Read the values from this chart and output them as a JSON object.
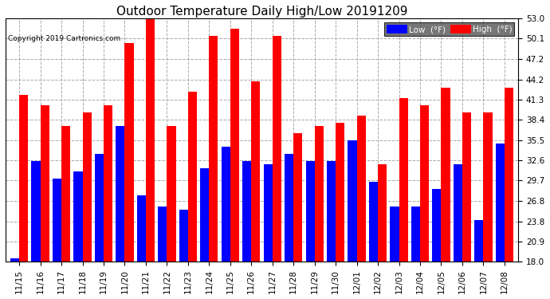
{
  "title": "Outdoor Temperature Daily High/Low 20191209",
  "copyright": "Copyright 2019 Cartronics.com",
  "legend_low": "Low  (°F)",
  "legend_high": "High  (°F)",
  "dates": [
    "11/15",
    "11/16",
    "11/17",
    "11/18",
    "11/19",
    "11/20",
    "11/21",
    "11/22",
    "11/23",
    "11/24",
    "11/25",
    "11/26",
    "11/27",
    "11/28",
    "11/29",
    "11/30",
    "12/01",
    "12/02",
    "12/03",
    "12/04",
    "12/05",
    "12/06",
    "12/07",
    "12/08"
  ],
  "highs": [
    42.0,
    40.5,
    37.5,
    39.5,
    40.5,
    49.5,
    53.0,
    37.5,
    42.5,
    50.5,
    51.5,
    44.0,
    50.5,
    36.5,
    37.5,
    38.0,
    39.0,
    32.0,
    41.5,
    40.5,
    43.0,
    39.5,
    39.5,
    43.0
  ],
  "lows": [
    18.5,
    32.5,
    30.0,
    31.0,
    33.5,
    37.5,
    27.5,
    26.0,
    25.5,
    31.5,
    34.5,
    32.5,
    32.0,
    33.5,
    32.5,
    32.5,
    35.5,
    29.5,
    26.0,
    26.0,
    28.5,
    32.0,
    24.0,
    35.0
  ],
  "ymin": 18.0,
  "ymax": 53.0,
  "yticks": [
    18.0,
    20.9,
    23.8,
    26.8,
    29.7,
    32.6,
    35.5,
    38.4,
    41.3,
    44.2,
    47.2,
    50.1,
    53.0
  ],
  "low_color": "#0000ff",
  "high_color": "#ff0000",
  "bg_color": "#ffffff",
  "grid_color": "#aaaaaa",
  "bar_width": 0.42,
  "title_fontsize": 11,
  "tick_fontsize": 7.5
}
